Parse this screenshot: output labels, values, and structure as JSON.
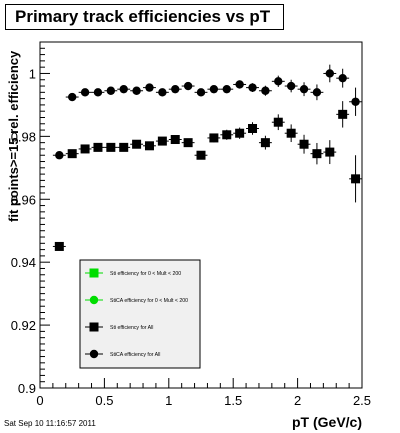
{
  "chart_data": {
    "type": "scatter",
    "title": "Primary track efficiencies vs pT",
    "xlabel": "pT (GeV/c)",
    "ylabel": "fit points>=15 rel. efficiency",
    "xlim": [
      0,
      2.5
    ],
    "ylim": [
      0.9,
      1.01
    ],
    "x_ticks": [
      "0",
      "0.5",
      "1",
      "1.5",
      "2",
      "2.5"
    ],
    "y_ticks": [
      "0.9",
      "0.92",
      "0.94",
      "0.96",
      "0.98",
      "1"
    ],
    "grid": false,
    "legend_position": "lower-left",
    "legend": [
      {
        "label": "Sti efficiency  for 0 < Mult < 200",
        "marker": "square",
        "color": "#00dd00"
      },
      {
        "label": "StiCA efficiency  for 0 < Mult < 200",
        "marker": "circle",
        "color": "#00dd00"
      },
      {
        "label": "Sti efficiency  for All",
        "marker": "square",
        "color": "#000000"
      },
      {
        "label": "StiCA efficiency  for All",
        "marker": "circle",
        "color": "#000000"
      }
    ],
    "series": [
      {
        "name": "Sti efficiency  for All",
        "marker": "square",
        "color": "#000000",
        "points": [
          {
            "x": 0.15,
            "y": 0.945,
            "err": 0
          },
          {
            "x": 0.25,
            "y": 0.9745,
            "err": 0
          },
          {
            "x": 0.35,
            "y": 0.976,
            "err": 0
          },
          {
            "x": 0.45,
            "y": 0.9765,
            "err": 0
          },
          {
            "x": 0.55,
            "y": 0.9765,
            "err": 0
          },
          {
            "x": 0.65,
            "y": 0.9765,
            "err": 0
          },
          {
            "x": 0.75,
            "y": 0.9775,
            "err": 0
          },
          {
            "x": 0.85,
            "y": 0.977,
            "err": 0
          },
          {
            "x": 0.95,
            "y": 0.9785,
            "err": 0.0006
          },
          {
            "x": 1.05,
            "y": 0.979,
            "err": 0.0008
          },
          {
            "x": 1.15,
            "y": 0.978,
            "err": 0.001
          },
          {
            "x": 1.25,
            "y": 0.974,
            "err": 0.0012
          },
          {
            "x": 1.35,
            "y": 0.9795,
            "err": 0.0014
          },
          {
            "x": 1.45,
            "y": 0.9805,
            "err": 0.0016
          },
          {
            "x": 1.55,
            "y": 0.981,
            "err": 0.0018
          },
          {
            "x": 1.65,
            "y": 0.9825,
            "err": 0.002
          },
          {
            "x": 1.75,
            "y": 0.978,
            "err": 0.0022
          },
          {
            "x": 1.85,
            "y": 0.9845,
            "err": 0.0025
          },
          {
            "x": 1.95,
            "y": 0.981,
            "err": 0.0028
          },
          {
            "x": 2.05,
            "y": 0.9775,
            "err": 0.003
          },
          {
            "x": 2.15,
            "y": 0.9745,
            "err": 0.0034
          },
          {
            "x": 2.25,
            "y": 0.975,
            "err": 0.0038
          },
          {
            "x": 2.35,
            "y": 0.987,
            "err": 0.0042
          },
          {
            "x": 2.45,
            "y": 0.9665,
            "err": 0.0075
          }
        ]
      },
      {
        "name": "StiCA efficiency  for All",
        "marker": "circle",
        "color": "#000000",
        "points": [
          {
            "x": 0.15,
            "y": 0.974,
            "err": 0
          },
          {
            "x": 0.25,
            "y": 0.9925,
            "err": 0
          },
          {
            "x": 0.35,
            "y": 0.994,
            "err": 0
          },
          {
            "x": 0.45,
            "y": 0.994,
            "err": 0
          },
          {
            "x": 0.55,
            "y": 0.9945,
            "err": 0
          },
          {
            "x": 0.65,
            "y": 0.995,
            "err": 0
          },
          {
            "x": 0.75,
            "y": 0.9945,
            "err": 0
          },
          {
            "x": 0.85,
            "y": 0.9955,
            "err": 0
          },
          {
            "x": 0.95,
            "y": 0.994,
            "err": 0.0005
          },
          {
            "x": 1.05,
            "y": 0.995,
            "err": 0.0006
          },
          {
            "x": 1.15,
            "y": 0.996,
            "err": 0.0008
          },
          {
            "x": 1.25,
            "y": 0.994,
            "err": 0.001
          },
          {
            "x": 1.35,
            "y": 0.995,
            "err": 0.0011
          },
          {
            "x": 1.45,
            "y": 0.995,
            "err": 0.0012
          },
          {
            "x": 1.55,
            "y": 0.9965,
            "err": 0.0013
          },
          {
            "x": 1.65,
            "y": 0.9955,
            "err": 0.0014
          },
          {
            "x": 1.75,
            "y": 0.9945,
            "err": 0.0016
          },
          {
            "x": 1.85,
            "y": 0.9975,
            "err": 0.0018
          },
          {
            "x": 1.95,
            "y": 0.996,
            "err": 0.002
          },
          {
            "x": 2.05,
            "y": 0.995,
            "err": 0.0022
          },
          {
            "x": 2.15,
            "y": 0.994,
            "err": 0.0025
          },
          {
            "x": 2.25,
            "y": 1.0,
            "err": 0.0028
          },
          {
            "x": 2.35,
            "y": 0.9985,
            "err": 0.003
          },
          {
            "x": 2.45,
            "y": 0.991,
            "err": 0.0045
          }
        ]
      }
    ]
  },
  "footer": {
    "timestamp": "Sat Sep 10 11:16:57 2011"
  }
}
